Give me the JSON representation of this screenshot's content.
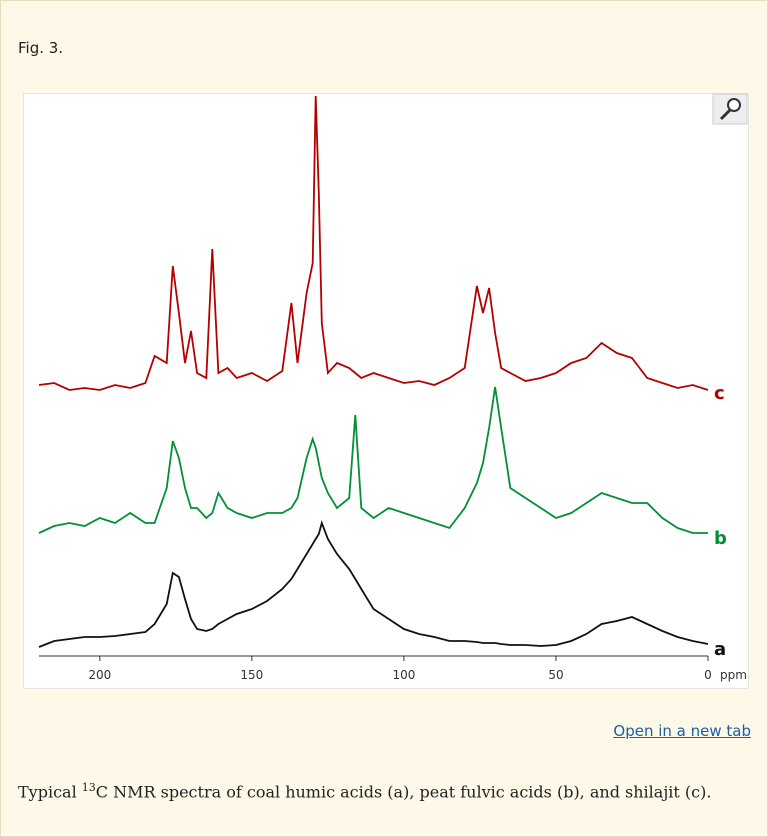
{
  "header": {
    "title": "Fig. 3."
  },
  "link": {
    "label": "Open in a new tab"
  },
  "caption": {
    "before": "Typical ",
    "superscript": "13",
    "after": "C NMR spectra of coal humic acids (a), peat fulvic acids (b), and shilajit (c)."
  },
  "chart_data": {
    "type": "line",
    "x": [
      220,
      215,
      210,
      205,
      200,
      195,
      190,
      185,
      182,
      178,
      176,
      174,
      172,
      170,
      168,
      165,
      163,
      161,
      158,
      155,
      150,
      145,
      140,
      137,
      135,
      132,
      130,
      129,
      128,
      127,
      125,
      122,
      118,
      116,
      114,
      110,
      105,
      100,
      95,
      90,
      85,
      80,
      76,
      74,
      72,
      70,
      68,
      65,
      60,
      55,
      50,
      45,
      40,
      35,
      30,
      25,
      20,
      15,
      10,
      5,
      0
    ],
    "xlim": [
      220,
      0
    ],
    "xticks": [
      200,
      150,
      100,
      50,
      0
    ],
    "xlabel": "ppm",
    "series": [
      {
        "name": "a",
        "color": "#111111",
        "values": [
          2,
          8,
          10,
          12,
          12,
          13,
          15,
          17,
          25,
          45,
          76,
          72,
          50,
          30,
          20,
          18,
          20,
          25,
          30,
          35,
          40,
          48,
          60,
          70,
          80,
          95,
          105,
          110,
          115,
          126,
          110,
          95,
          80,
          70,
          60,
          40,
          30,
          20,
          15,
          12,
          8,
          8,
          7,
          6,
          6,
          6,
          5,
          4,
          4,
          3,
          4,
          8,
          15,
          25,
          28,
          32,
          25,
          18,
          12,
          8,
          5
        ]
      },
      {
        "name": "b",
        "color": "#009035",
        "values": [
          5,
          12,
          15,
          12,
          20,
          15,
          25,
          15,
          15,
          50,
          97,
          80,
          50,
          30,
          30,
          20,
          25,
          45,
          30,
          25,
          20,
          25,
          25,
          30,
          40,
          80,
          99,
          90,
          75,
          60,
          45,
          30,
          40,
          123,
          30,
          20,
          30,
          25,
          20,
          15,
          10,
          30,
          55,
          75,
          110,
          151,
          110,
          50,
          40,
          30,
          20,
          25,
          35,
          45,
          40,
          35,
          35,
          20,
          10,
          5,
          5
        ]
      },
      {
        "name": "c",
        "color": "#b30000",
        "values": [
          8,
          10,
          3,
          5,
          3,
          8,
          5,
          10,
          37,
          30,
          127,
          80,
          30,
          62,
          20,
          15,
          144,
          20,
          25,
          15,
          20,
          12,
          22,
          90,
          30,
          100,
          130,
          297,
          200,
          70,
          20,
          30,
          25,
          20,
          15,
          20,
          15,
          10,
          12,
          8,
          15,
          25,
          107,
          80,
          105,
          60,
          25,
          20,
          12,
          15,
          20,
          30,
          35,
          50,
          40,
          35,
          15,
          10,
          5,
          8,
          3
        ]
      }
    ]
  }
}
